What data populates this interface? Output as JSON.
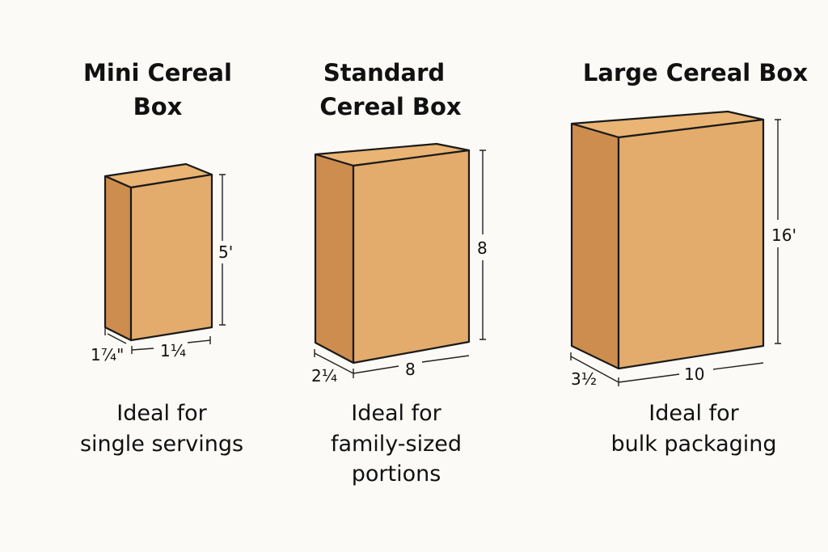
{
  "colors": {
    "background": "#fbfaf6",
    "front": "#e3ac6c",
    "side": "#cd8d4e",
    "top": "#e9b474",
    "outline": "#1a1a1a"
  },
  "boxes": [
    {
      "title_lines": [
        "Mini Cereal",
        "Box"
      ],
      "height_label": "5'",
      "depth_label": "1⁷⁄₄\"",
      "width_label": "1¼",
      "caption_lines": [
        "Ideal for",
        "single servings"
      ]
    },
    {
      "title_lines": [
        "Standard",
        "Cereal Box"
      ],
      "height_label": "8",
      "depth_label": "2¼",
      "width_label": "8",
      "caption_lines": [
        "Ideal for",
        "family-sized",
        "portions"
      ]
    },
    {
      "title_lines": [
        "Large Cereal Box"
      ],
      "height_label": "16'",
      "depth_label": "3½",
      "width_label": "10",
      "caption_lines": [
        "Ideal for",
        "bulk packaging"
      ]
    }
  ]
}
